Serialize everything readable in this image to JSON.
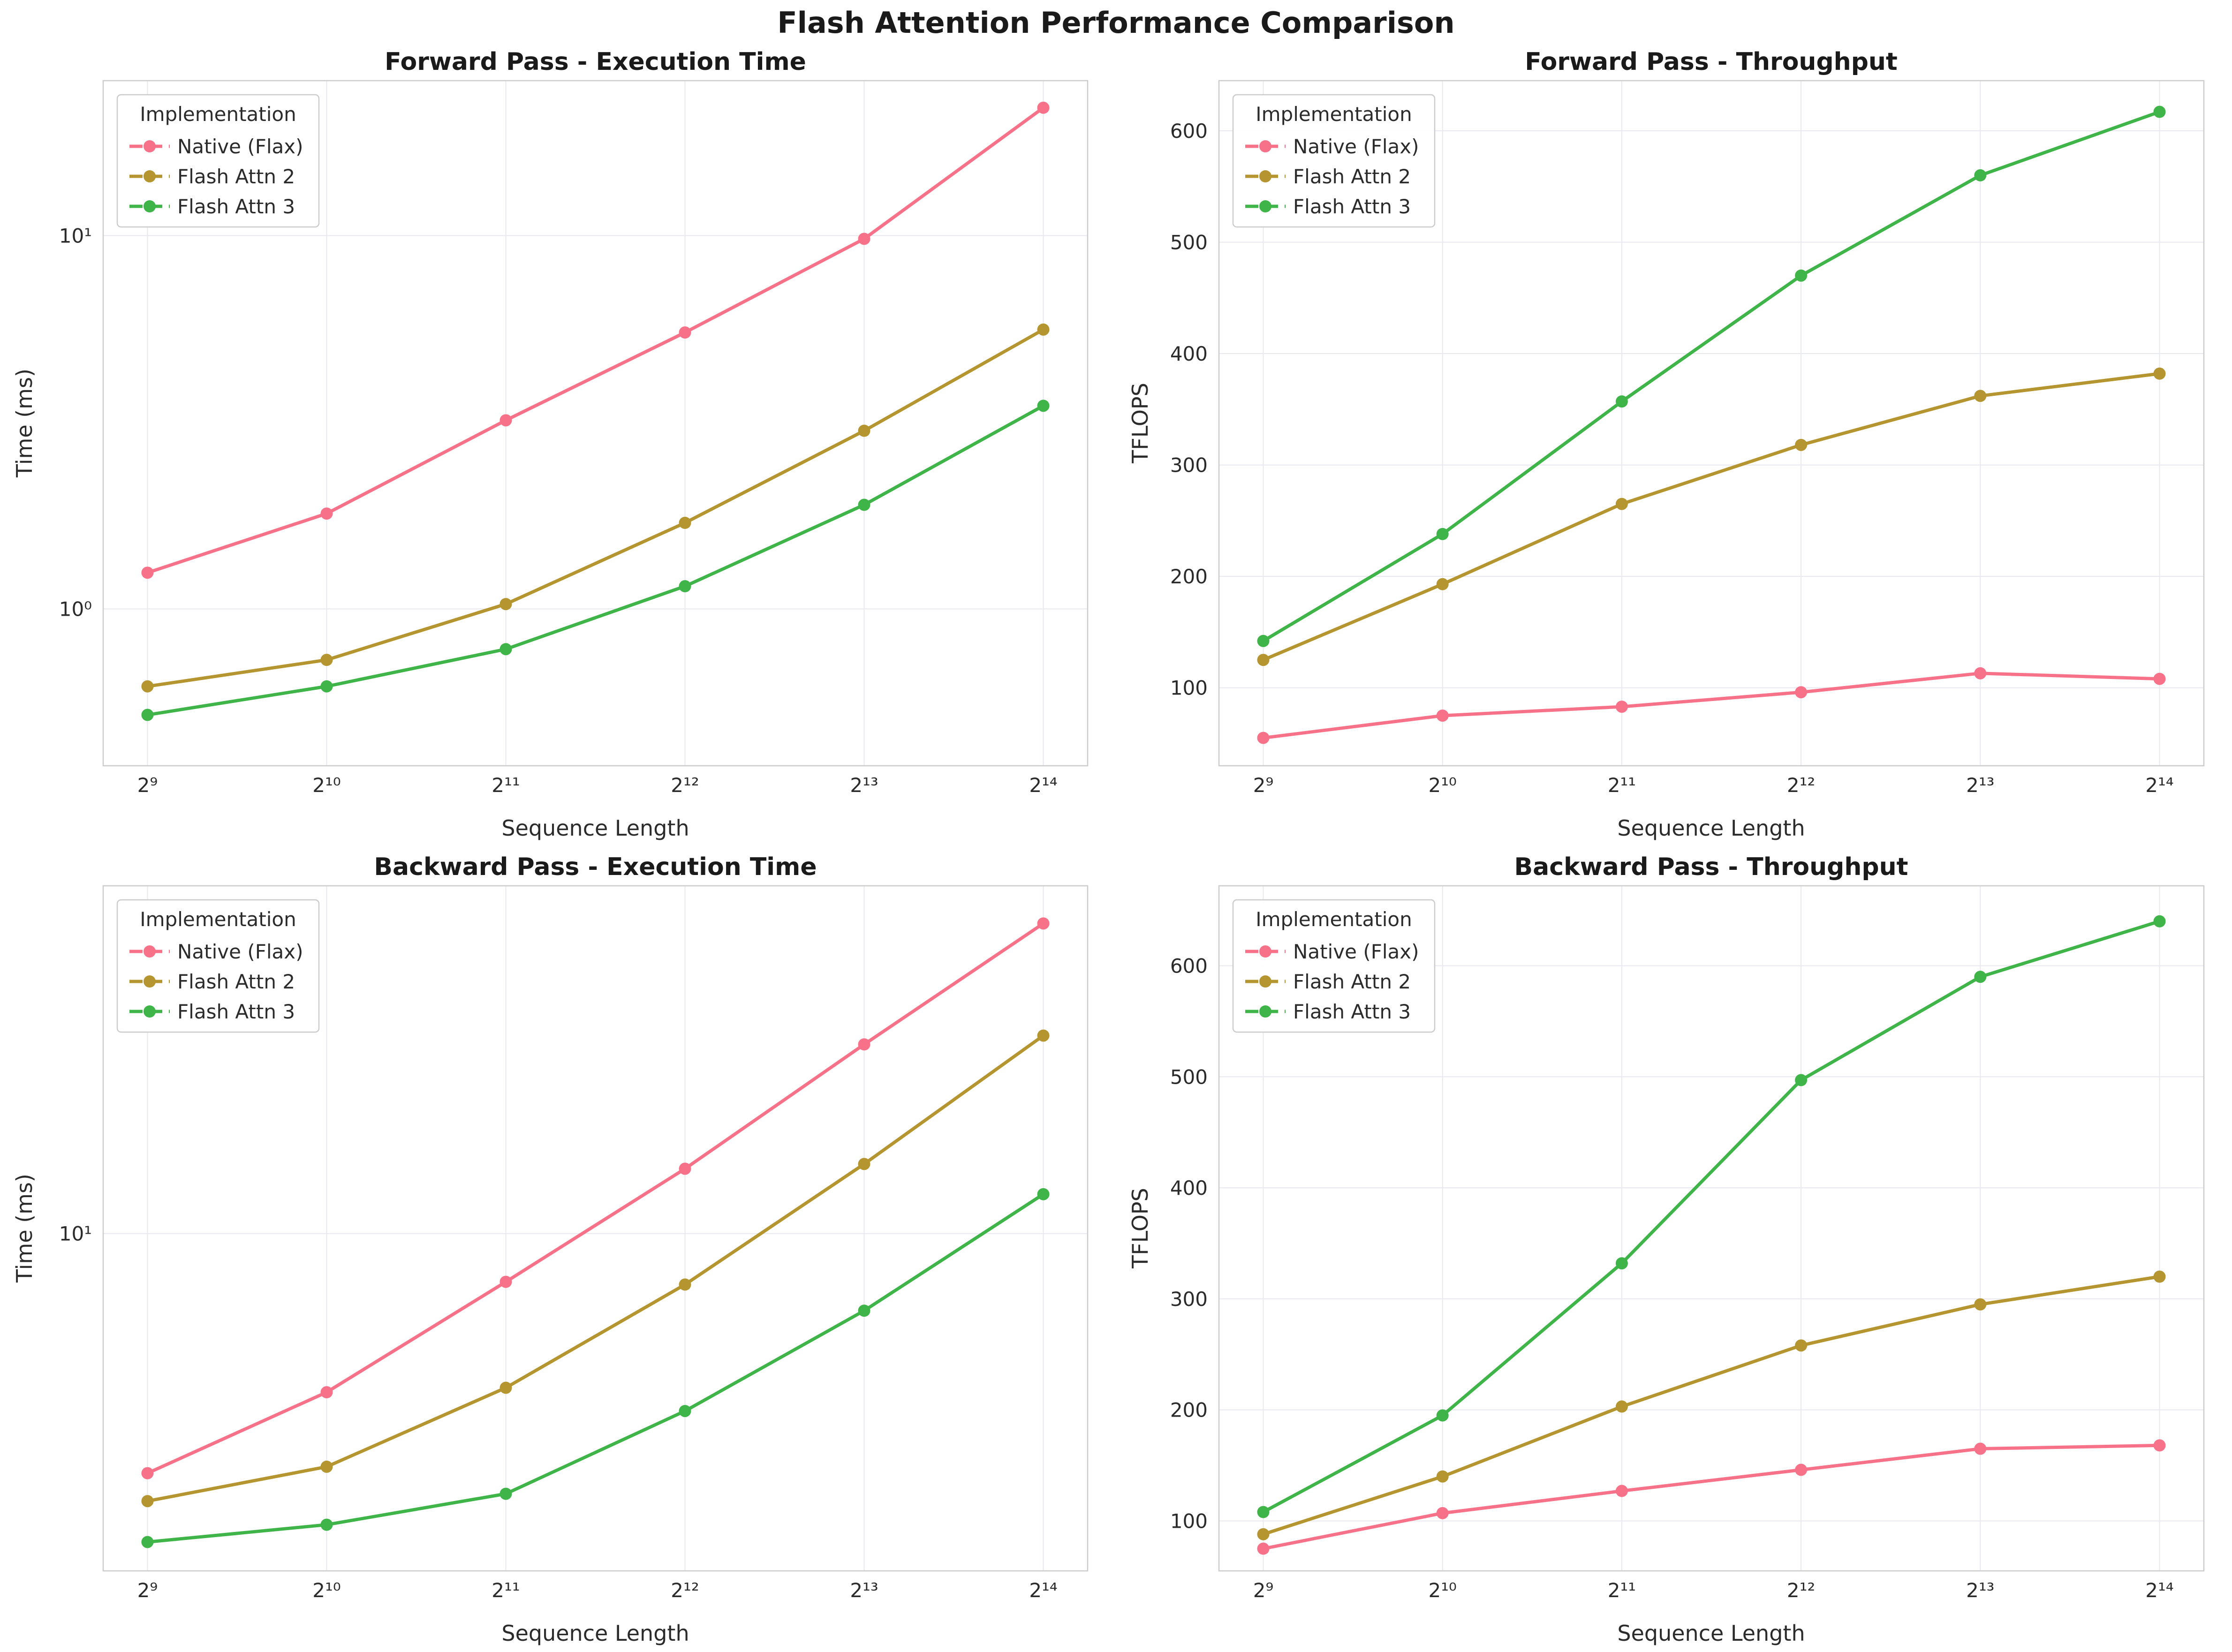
{
  "page_title": "Flash Attention Performance Comparison",
  "legend_title": "Implementation",
  "style": {
    "grid_color": "#e8e8ef",
    "spine_color": "#cccccc",
    "text_color": "#2b2b2b",
    "pink": "#f77189",
    "olive": "#b5952f",
    "green": "#3eb449"
  },
  "chart_data": [
    {
      "type": "line",
      "title": "Forward Pass - Execution Time",
      "xlabel": "Sequence Length",
      "ylabel": "Time (ms)",
      "x_categories": [
        "2⁹",
        "2¹⁰",
        "2¹¹",
        "2¹²",
        "2¹³",
        "2¹⁴"
      ],
      "x_values": [
        512,
        1024,
        2048,
        4096,
        8192,
        16384
      ],
      "yscale": "log",
      "ylim": [
        0.38,
        26
      ],
      "yticks": [
        {
          "v": 1,
          "label": "10⁰"
        },
        {
          "v": 10,
          "label": "10¹"
        }
      ],
      "legend_position": "upper-left",
      "grid": true,
      "series": [
        {
          "name": "Native (Flax)",
          "color": "#f77189",
          "values": [
            1.25,
            1.8,
            3.2,
            5.5,
            9.8,
            22.0
          ]
        },
        {
          "name": "Flash Attn 2",
          "color": "#b5952f",
          "values": [
            0.62,
            0.73,
            1.03,
            1.7,
            3.0,
            5.6
          ]
        },
        {
          "name": "Flash Attn 3",
          "color": "#3eb449",
          "values": [
            0.52,
            0.62,
            0.78,
            1.15,
            1.9,
            3.5
          ]
        }
      ]
    },
    {
      "type": "line",
      "title": "Forward Pass - Throughput",
      "xlabel": "Sequence Length",
      "ylabel": "TFLOPS",
      "x_categories": [
        "2⁹",
        "2¹⁰",
        "2¹¹",
        "2¹²",
        "2¹³",
        "2¹⁴"
      ],
      "x_values": [
        512,
        1024,
        2048,
        4096,
        8192,
        16384
      ],
      "yscale": "linear",
      "ylim": [
        30,
        645
      ],
      "yticks": [
        {
          "v": 100,
          "label": "100"
        },
        {
          "v": 200,
          "label": "200"
        },
        {
          "v": 300,
          "label": "300"
        },
        {
          "v": 400,
          "label": "400"
        },
        {
          "v": 500,
          "label": "500"
        },
        {
          "v": 600,
          "label": "600"
        }
      ],
      "legend_position": "upper-left",
      "grid": true,
      "series": [
        {
          "name": "Native (Flax)",
          "color": "#f77189",
          "values": [
            55,
            75,
            83,
            96,
            113,
            108
          ]
        },
        {
          "name": "Flash Attn 2",
          "color": "#b5952f",
          "values": [
            125,
            193,
            265,
            318,
            362,
            382
          ]
        },
        {
          "name": "Flash Attn 3",
          "color": "#3eb449",
          "values": [
            142,
            238,
            357,
            470,
            560,
            617
          ]
        }
      ]
    },
    {
      "type": "line",
      "title": "Backward Pass - Execution Time",
      "xlabel": "Sequence Length",
      "ylabel": "Time (ms)",
      "x_categories": [
        "2⁹",
        "2¹⁰",
        "2¹¹",
        "2¹²",
        "2¹³",
        "2¹⁴"
      ],
      "x_values": [
        512,
        1024,
        2048,
        4096,
        8192,
        16384
      ],
      "yscale": "log",
      "ylim": [
        2.1,
        50
      ],
      "yticks": [
        {
          "v": 10,
          "label": "10¹"
        }
      ],
      "legend_position": "upper-left",
      "grid": true,
      "series": [
        {
          "name": "Native (Flax)",
          "color": "#f77189",
          "values": [
            3.3,
            4.8,
            8.0,
            13.5,
            24.0,
            42.0
          ]
        },
        {
          "name": "Flash Attn 2",
          "color": "#b5952f",
          "values": [
            2.9,
            3.4,
            4.9,
            7.9,
            13.8,
            25.0
          ]
        },
        {
          "name": "Flash Attn 3",
          "color": "#3eb449",
          "values": [
            2.4,
            2.6,
            3.0,
            4.4,
            7.0,
            12.0
          ]
        }
      ]
    },
    {
      "type": "line",
      "title": "Backward Pass - Throughput",
      "xlabel": "Sequence Length",
      "ylabel": "TFLOPS",
      "x_categories": [
        "2⁹",
        "2¹⁰",
        "2¹¹",
        "2¹²",
        "2¹³",
        "2¹⁴"
      ],
      "x_values": [
        512,
        1024,
        2048,
        4096,
        8192,
        16384
      ],
      "yscale": "linear",
      "ylim": [
        55,
        672
      ],
      "yticks": [
        {
          "v": 100,
          "label": "100"
        },
        {
          "v": 200,
          "label": "200"
        },
        {
          "v": 300,
          "label": "300"
        },
        {
          "v": 400,
          "label": "400"
        },
        {
          "v": 500,
          "label": "500"
        },
        {
          "v": 600,
          "label": "600"
        }
      ],
      "legend_position": "upper-left",
      "grid": true,
      "series": [
        {
          "name": "Native (Flax)",
          "color": "#f77189",
          "values": [
            75,
            107,
            127,
            146,
            165,
            168
          ]
        },
        {
          "name": "Flash Attn 2",
          "color": "#b5952f",
          "values": [
            88,
            140,
            203,
            258,
            295,
            320
          ]
        },
        {
          "name": "Flash Attn 3",
          "color": "#3eb449",
          "values": [
            108,
            195,
            332,
            497,
            590,
            640
          ]
        }
      ]
    }
  ]
}
